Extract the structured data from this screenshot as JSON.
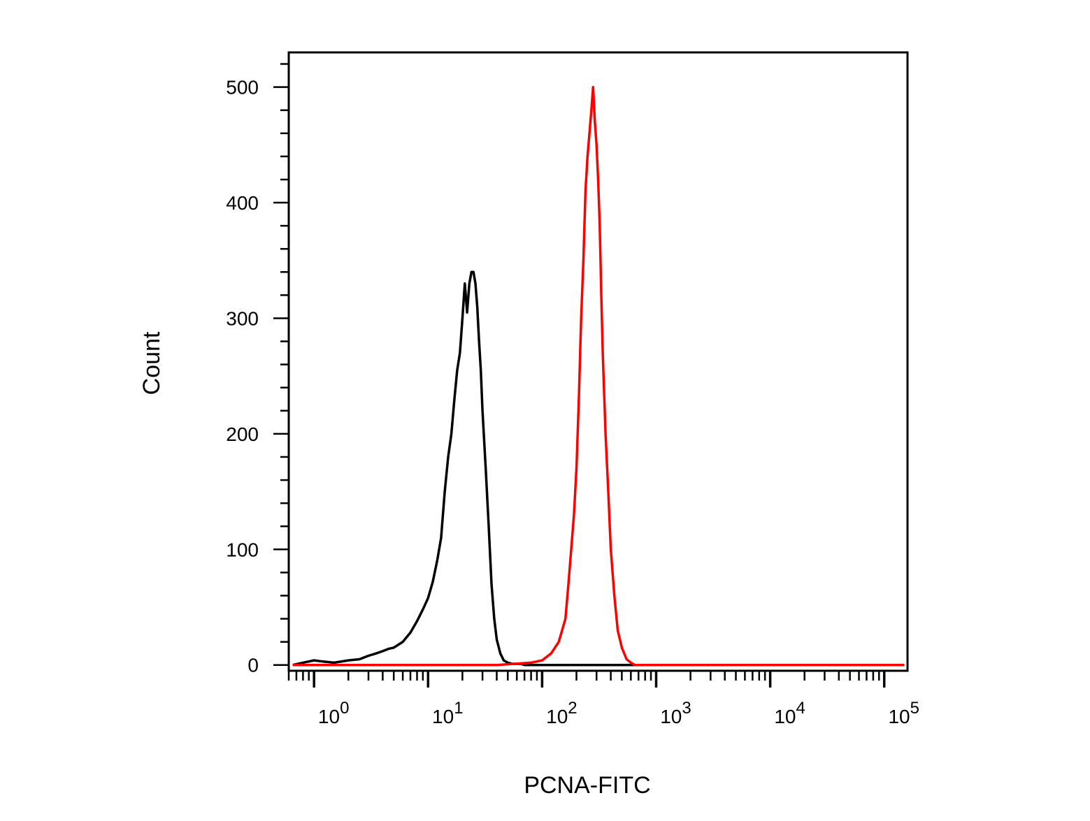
{
  "chart_data": {
    "type": "line",
    "title": "",
    "xlabel": "PCNA-FITC",
    "ylabel": "Count",
    "x_scale": "log",
    "xlim": [
      0.6,
      160000
    ],
    "ylim": [
      -5,
      530
    ],
    "x_ticks": [
      {
        "value": 1,
        "base": "10",
        "exp": "0"
      },
      {
        "value": 10,
        "base": "10",
        "exp": "1"
      },
      {
        "value": 100,
        "base": "10",
        "exp": "2"
      },
      {
        "value": 1000,
        "base": "10",
        "exp": "3"
      },
      {
        "value": 10000,
        "base": "10",
        "exp": "4"
      },
      {
        "value": 100000,
        "base": "10",
        "exp": "5"
      }
    ],
    "y_ticks": [
      {
        "value": 0,
        "label": "0"
      },
      {
        "value": 100,
        "label": "100"
      },
      {
        "value": 200,
        "label": "200"
      },
      {
        "value": 300,
        "label": "300"
      },
      {
        "value": 400,
        "label": "400"
      },
      {
        "value": 500,
        "label": "500"
      }
    ],
    "grid": false,
    "legend": "none",
    "series": [
      {
        "color": "#000000",
        "x": [
          0.65,
          0.8,
          1.0,
          1.2,
          1.5,
          2.0,
          2.5,
          3.0,
          3.5,
          4.0,
          4.5,
          5.0,
          6.0,
          7.0,
          8.0,
          9.0,
          10.0,
          11.0,
          12.0,
          13.0,
          14.0,
          15.0,
          16.0,
          17.0,
          18.0,
          19.0,
          20.0,
          21.0,
          22.0,
          23.0,
          24.0,
          25.0,
          26.0,
          27.0,
          28.0,
          29.0,
          30.0,
          32.0,
          34.0,
          36.0,
          38.0,
          40.0,
          43.0,
          46.0,
          50.0,
          55.0,
          60.0,
          65.0,
          70.0,
          75.0,
          80.0,
          85.0,
          90.0,
          100.0,
          120.0,
          200.0,
          1000.0,
          10000.0,
          150000.0
        ],
        "y": [
          0,
          2,
          4,
          3,
          2,
          4,
          5,
          8,
          10,
          12,
          14,
          15,
          20,
          28,
          38,
          48,
          58,
          72,
          90,
          110,
          150,
          180,
          200,
          230,
          255,
          270,
          300,
          330,
          305,
          330,
          340,
          340,
          330,
          310,
          280,
          255,
          220,
          170,
          120,
          70,
          40,
          22,
          10,
          4,
          2,
          1,
          1,
          1,
          0,
          0,
          0,
          0,
          0,
          0,
          0,
          0,
          0,
          0,
          0
        ]
      },
      {
        "color": "#ff0000",
        "x": [
          0.65,
          10.0,
          40.0,
          80.0,
          100.0,
          120.0,
          140.0,
          160.0,
          170.0,
          180.0,
          190.0,
          200.0,
          210.0,
          220.0,
          230.0,
          240.0,
          250.0,
          260.0,
          270.0,
          280.0,
          290.0,
          300.0,
          310.0,
          320.0,
          330.0,
          340.0,
          360.0,
          380.0,
          400.0,
          430.0,
          460.0,
          500.0,
          550.0,
          600.0,
          650.0,
          700.0,
          750.0,
          800.0,
          850.0,
          900.0,
          1000.0,
          10000.0,
          150000.0
        ],
        "y": [
          0,
          0,
          0,
          2,
          4,
          10,
          20,
          40,
          70,
          100,
          130,
          170,
          230,
          300,
          350,
          410,
          440,
          460,
          480,
          500,
          470,
          450,
          420,
          380,
          320,
          270,
          200,
          150,
          100,
          60,
          30,
          15,
          5,
          2,
          0,
          0,
          0,
          0,
          0,
          0,
          0,
          0,
          0
        ]
      }
    ]
  }
}
